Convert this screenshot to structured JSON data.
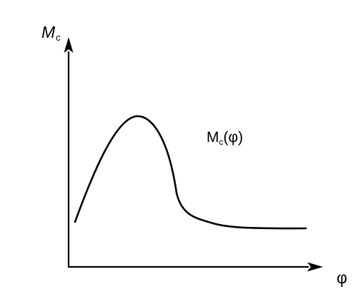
{
  "y_axis": {
    "symbol": "M",
    "subscript": "c"
  },
  "x_axis": {
    "symbol": "φ"
  },
  "curve_label": {
    "symbol": "M",
    "subscript": "c",
    "argument": "(φ)"
  }
}
